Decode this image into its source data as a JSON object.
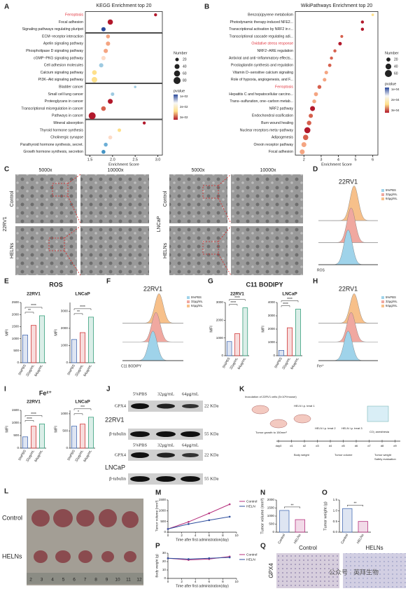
{
  "panel_labels": [
    "A",
    "B",
    "C",
    "D",
    "E",
    "F",
    "G",
    "H",
    "I",
    "J",
    "K",
    "L",
    "M",
    "N",
    "O",
    "P",
    "Q"
  ],
  "chart_data": [
    {
      "type": "dot",
      "title": "KEGG Enrichment top 20",
      "xlabel": "Enrichment Score",
      "categories": [
        "Ferroptosis",
        "Focal adhesion",
        "Signaling pathways regulating pluripot",
        "ECM−receptor interaction",
        "Apelin signaling pathway",
        "Phospholipase D signaling pathway",
        "cGMP−PKG signaling pathway",
        "Cell adhesion molecules",
        "Calcium signaling pathway",
        "PI3K−Akt signaling pathway",
        "Bladder cancer",
        "Small cell lung cancer",
        "Proteoglycans in cancer",
        "Transcriptional misregulation in cancer",
        "Pathways in cancer",
        "Mineral absorption",
        "Thyroid hormone synthesis",
        "Cholinergic synapse",
        "Parathyroid hormone synthesis, secret.",
        "Growth hormone synthesis, secretion"
      ],
      "values": [
        2.95,
        1.95,
        1.8,
        1.9,
        1.9,
        1.85,
        1.8,
        1.75,
        1.6,
        1.6,
        2.5,
        2.0,
        1.95,
        1.8,
        1.55,
        2.7,
        2.15,
        1.95,
        1.85,
        1.8
      ],
      "sizes": [
        15,
        45,
        30,
        25,
        30,
        30,
        30,
        30,
        35,
        50,
        10,
        20,
        40,
        35,
        80,
        15,
        20,
        25,
        25,
        25
      ],
      "colors": [
        "#b2182b",
        "#b2182b",
        "#2b4a9b",
        "#f4a582",
        "#f4a582",
        "#f4a582",
        "#fddbc7",
        "#9ecae1",
        "#fee08b",
        "#fee08b",
        "#9ecae1",
        "#9ecae1",
        "#b2182b",
        "#d6604d",
        "#b2182b",
        "#b2182b",
        "#fee08b",
        "#fddbc7",
        "#6baed6",
        "#4393c3"
      ],
      "highlighted": [
        0
      ],
      "highlight_color": "#e0303a",
      "groups": [
        3,
        7,
        5,
        5
      ],
      "xlim": [
        1.4,
        3.1
      ],
      "xticks": [
        1.5,
        {
          "value": 2,
          "label": "2.0"
        },
        2.5,
        {
          "value": 3,
          "label": "3.0"
        }
      ],
      "size_legend": {
        "title": "Number",
        "values": [
          20,
          40,
          60,
          80
        ]
      },
      "color_legend": {
        "title": "pvalue",
        "colors": [
          "#2b4a9b",
          "#f7f7f7",
          "#fee08b",
          "#b2182b"
        ],
        "labels": [
          "1e-02",
          "2e-02",
          "3e-02"
        ]
      }
    },
    {
      "type": "dot",
      "title": "WikiPathways Enrichment top 20",
      "xlabel": "Enrichment Score",
      "categories": [
        "Benzo(a)pyrene metabolism",
        "Photodynamic therapy-induced NFE2...",
        "Transcriptional activation by NRF2 in r...",
        "Transcriptional cascade regulating adi...",
        "Oxidative stress response",
        "NRF2−ARE regulation",
        "Antiviral and anti−inflammatory effects...",
        "Prostaglandin synthesis and regulation",
        "Vitamin D−sensitive calcium signaling",
        "Role of hypoxia, angiogenesis, and F...",
        "Ferroptosis",
        "Hepatitis C and hepatocellular carcino...",
        "Trans−sulfuration, one−carbon metab...",
        "NRF2 pathway",
        "Endochondral ossification",
        "Burn wound healing",
        "Nuclear receptors meta−pathway",
        "Adipogenesis",
        "Orexin receptor pathway",
        "Focal adhesion"
      ],
      "values": [
        6.0,
        5.4,
        5.4,
        4.2,
        4.1,
        3.8,
        3.6,
        3.5,
        3.3,
        3.2,
        2.9,
        2.7,
        2.6,
        2.5,
        2.4,
        2.3,
        2.2,
        2.1,
        2.0,
        1.9
      ],
      "sizes": [
        8,
        12,
        12,
        10,
        15,
        12,
        12,
        14,
        16,
        16,
        18,
        20,
        18,
        30,
        22,
        25,
        45,
        35,
        30,
        30
      ],
      "colors": [
        "#fee08b",
        "#b2182b",
        "#b2182b",
        "#d6604d",
        "#b2182b",
        "#d6604d",
        "#d6604d",
        "#d6604d",
        "#f4a582",
        "#f4a582",
        "#d6604d",
        "#f4a582",
        "#f4a582",
        "#b2182b",
        "#d6604d",
        "#d6604d",
        "#b2182b",
        "#d6604d",
        "#f4a582",
        "#f4a582"
      ],
      "highlighted": [
        4,
        10
      ],
      "highlight_color": "#e0303a",
      "xlim": [
        1.5,
        6.3
      ],
      "xticks": [
        2,
        3,
        4,
        5,
        6
      ],
      "size_legend": {
        "title": "Number",
        "values": [
          20,
          40,
          60
        ]
      },
      "color_legend": {
        "title": "pvalue",
        "colors": [
          "#2b4a9b",
          "#f7f7f7",
          "#fee08b",
          "#b2182b"
        ],
        "labels": [
          "1e-04",
          "2e-04",
          "3e-04"
        ]
      }
    },
    {
      "type": "bar",
      "title": "22RV1",
      "ylabel": "MFI",
      "categories": [
        "5%PBS",
        "32μg/mL",
        "64μg/mL"
      ],
      "values": [
        1150,
        1550,
        1950
      ],
      "colors": [
        "#4a6fb5",
        "#d13b3b",
        "#3aa17e"
      ],
      "ylim": [
        0,
        2500
      ],
      "yticks": [
        0,
        500,
        1000,
        1500,
        2000,
        2500
      ],
      "annotations": [
        "**",
        "****"
      ]
    },
    {
      "type": "bar",
      "title": "LNCaP",
      "ylabel": "MFI",
      "categories": [
        "5%PBS",
        "32μg/mL",
        "64μg/mL"
      ],
      "values": [
        1350,
        1750,
        2650
      ],
      "colors": [
        "#4a6fb5",
        "#d13b3b",
        "#3aa17e"
      ],
      "ylim": [
        0,
        3500
      ],
      "yticks": [
        0,
        1000,
        2000,
        3000
      ],
      "annotations": [
        "**",
        "****"
      ]
    },
    {
      "type": "bar",
      "title": "22RV1",
      "ylabel": "MFI",
      "categories": [
        "5%PBS",
        "32μg/mL",
        "64μg/mL"
      ],
      "values": [
        800,
        1250,
        2700
      ],
      "colors": [
        "#4a6fb5",
        "#d13b3b",
        "#3aa17e"
      ],
      "ylim": [
        0,
        3000
      ],
      "yticks": [
        0,
        1000,
        2000,
        3000
      ],
      "annotations": [
        "****",
        "****"
      ]
    },
    {
      "type": "bar",
      "title": "LNCaP",
      "ylabel": "MFI",
      "categories": [
        "5%PBS",
        "32μg/mL",
        "64μg/mL"
      ],
      "values": [
        400,
        2100,
        3500
      ],
      "colors": [
        "#4a6fb5",
        "#d13b3b",
        "#3aa17e"
      ],
      "ylim": [
        0,
        4000
      ],
      "yticks": [
        0,
        1000,
        2000,
        3000,
        4000
      ],
      "annotations": [
        "****",
        "****"
      ]
    },
    {
      "type": "bar",
      "title": "22RV1",
      "ylabel": "MFI",
      "categories": [
        "5%PBS",
        "32μg/mL",
        "64μg/mL"
      ],
      "values": [
        450,
        870,
        960
      ],
      "colors": [
        "#4a6fb5",
        "#d13b3b",
        "#3aa17e"
      ],
      "ylim": [
        0,
        1500
      ],
      "yticks": [
        0,
        500,
        1000,
        1500
      ],
      "annotations": [
        "****",
        "****"
      ]
    },
    {
      "type": "bar",
      "title": "LNCaP",
      "ylabel": "MFI",
      "categories": [
        "5%PBS",
        "32μg/mL",
        "64μg/mL"
      ],
      "values": [
        640,
        700,
        900
      ],
      "colors": [
        "#4a6fb5",
        "#d13b3b",
        "#3aa17e"
      ],
      "ylim": [
        0,
        1100
      ],
      "yticks": [
        0,
        500,
        1000
      ],
      "annotations": [
        "*",
        "***"
      ]
    },
    {
      "type": "line",
      "xlabel": "Time after first administration(day)",
      "ylabel": "Tumor volume (mm³)",
      "x": [
        0,
        3,
        6,
        9
      ],
      "series": [
        {
          "name": "Control",
          "color": "#b5307d",
          "values": [
            150,
            480,
            880,
            1300
          ]
        },
        {
          "name": "HELN",
          "color": "#2f4f9e",
          "values": [
            150,
            380,
            560,
            720
          ]
        }
      ],
      "xlim": [
        0,
        10
      ],
      "xticks": [
        0,
        2,
        4,
        6,
        8,
        10
      ],
      "ylim": [
        0,
        1500
      ],
      "yticks": [
        0,
        500,
        1000,
        1500
      ]
    },
    {
      "type": "line",
      "xlabel": "Time after first administration(day)",
      "ylabel": "Body weight (g)",
      "x": [
        0,
        3,
        6,
        9
      ],
      "series": [
        {
          "name": "Control",
          "color": "#b5307d",
          "values": [
            24,
            22,
            23,
            26
          ]
        },
        {
          "name": "HELN",
          "color": "#2f4f9e",
          "values": [
            24,
            23,
            24,
            25
          ]
        }
      ],
      "xlim": [
        0,
        10
      ],
      "xticks": [
        0,
        2,
        4,
        6,
        8,
        10
      ],
      "ylim": [
        0,
        30
      ],
      "yticks": [
        0,
        10,
        20,
        30
      ]
    },
    {
      "type": "bar",
      "ylabel": "Tumor volume (mm³)",
      "categories": [
        "Control",
        "HELNs"
      ],
      "values": [
        1350,
        780
      ],
      "colors": [
        "#4a6fb5",
        "#b5307d"
      ],
      "ylim": [
        0,
        2000
      ],
      "yticks": [
        0,
        500,
        1000,
        1500,
        2000
      ],
      "annotations": [
        "**"
      ]
    },
    {
      "type": "bar",
      "ylabel": "Tumor weight (g)",
      "categories": [
        "Control",
        "HELNs"
      ],
      "values": [
        1.1,
        0.5
      ],
      "colors": [
        "#4a6fb5",
        "#b5307d"
      ],
      "ylim": [
        0,
        1.5
      ],
      "yticks": [
        {
          "value": 0,
          "label": "0.0"
        },
        0.5,
        {
          "value": 1,
          "label": "1.0"
        },
        1.5
      ],
      "annotations": [
        "**"
      ]
    }
  ],
  "flow_panels": [
    {
      "title": "22RV1",
      "xlabel": "ROS",
      "legend": [
        "5%PBS",
        "32μg/mL",
        "64μg/mL"
      ],
      "colors": [
        "#9fd3ea",
        "#f0a8a0",
        "#f7c08a"
      ]
    },
    {
      "title": "22RV1",
      "xlabel": "C11 BODIPY",
      "legend": [
        "5%PBS",
        "32μg/mL",
        "64μg/mL"
      ],
      "colors": [
        "#9fd3ea",
        "#f0a8a0",
        "#f7c08a"
      ]
    },
    {
      "title": "22RV1",
      "xlabel": "Fe²⁺",
      "legend": [
        "5%PBS",
        "32μg/mL",
        "64μg/mL"
      ],
      "colors": [
        "#9fd3ea",
        "#f0a8a0",
        "#f7c08a"
      ]
    }
  ],
  "panel_titles": {
    "E": "ROS",
    "G": "C11 BODIPY",
    "I": "Fe²⁺"
  },
  "panel_C": {
    "magnifications": [
      "5000x",
      "10000x"
    ],
    "rows": [
      "Control",
      "HELNs"
    ],
    "cells": [
      "22RV1",
      "LNCaP"
    ]
  },
  "panel_J": {
    "lanes": [
      "5%PBS",
      "32μg/mL",
      "64μg/mL"
    ],
    "proteins": [
      "GPX4",
      "β-tubulin"
    ],
    "sizes": [
      "22 KDa",
      "55 KDa"
    ],
    "cells": [
      "22RV1",
      "LNCaP"
    ]
  },
  "panel_K": {
    "inoculation": "Inoculation of 22RV1 cells (5×10⁶/mouse)",
    "growth": "Tumor growth to 150mm³",
    "treatments": [
      "HELN i.p. treat 1",
      "HELN i.p. treat 2",
      "HELN i.p. treat 3"
    ],
    "endpoint": "CO₂ anesthesia",
    "days": [
      "day0",
      "d1",
      "d2",
      "d3",
      "d4",
      "d5",
      "d6",
      "d7",
      "d8",
      "d9"
    ],
    "measures": [
      "Body weight",
      "Tumor volume",
      "Tumor weight",
      "Safety evaluation"
    ]
  },
  "panel_L": {
    "rows": [
      "Control",
      "HELNs"
    ],
    "ruler": [
      2,
      3,
      4,
      5,
      6,
      7,
      8,
      9,
      10,
      11,
      12
    ]
  },
  "panel_Q": {
    "stain": "GPX4",
    "groups": [
      "Control",
      "HELNs"
    ]
  },
  "watermark": "公众号 · 英拜生物"
}
